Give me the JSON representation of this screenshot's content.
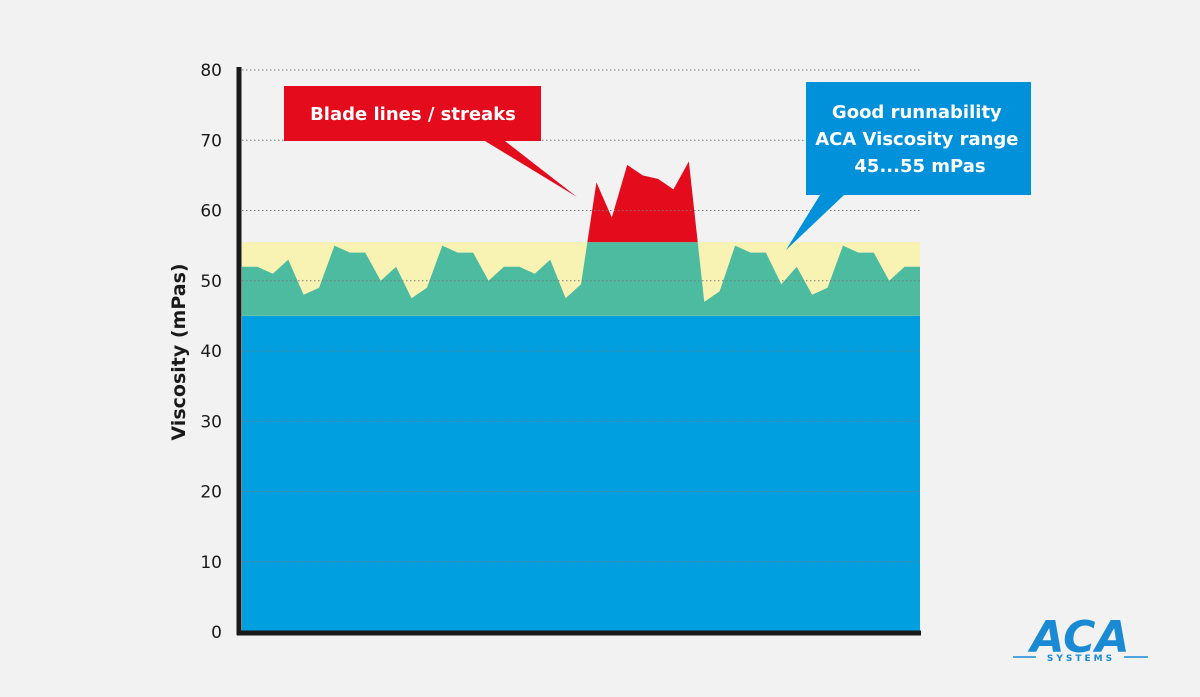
{
  "chart_data": {
    "type": "area",
    "ylabel": "Viscosity (mPas)",
    "xlabel": "",
    "ylim": [
      0,
      80
    ],
    "yticks": [
      0,
      10,
      20,
      30,
      40,
      50,
      60,
      70,
      80
    ],
    "grid": "horizontal-dotted",
    "series": [
      {
        "values": [
          52,
          52,
          51,
          53,
          48,
          49,
          55,
          54,
          54,
          50,
          52,
          47.5,
          49,
          55,
          54,
          54,
          50,
          52,
          52,
          51,
          53,
          47.5,
          49.5,
          64,
          59,
          66.5,
          65,
          64.5,
          63,
          67,
          47,
          48.5,
          55,
          54,
          54,
          49.5,
          52,
          48,
          49,
          55,
          54,
          54,
          50,
          52,
          52
        ]
      }
    ],
    "bands": [
      {
        "from": 0,
        "to": 45,
        "color": "#009fe0"
      },
      {
        "from": 45,
        "to": 55.5,
        "color": "#f8f3b3"
      }
    ],
    "series_colors": {
      "in_band": "#4dbb9f",
      "above_band": "#e30b1c"
    },
    "annotations": [
      {
        "lines": [
          "Blade lines / streaks"
        ],
        "color": "#e30b1c",
        "pointer": "left"
      },
      {
        "lines": [
          "Good runnability",
          "ACA Viscosity range",
          "45...55 mPas"
        ],
        "color": "#0091da",
        "pointer": "right"
      }
    ]
  },
  "logo": {
    "main": "ACA",
    "sub": "SYSTEMS",
    "color": "#1a8ad4"
  }
}
